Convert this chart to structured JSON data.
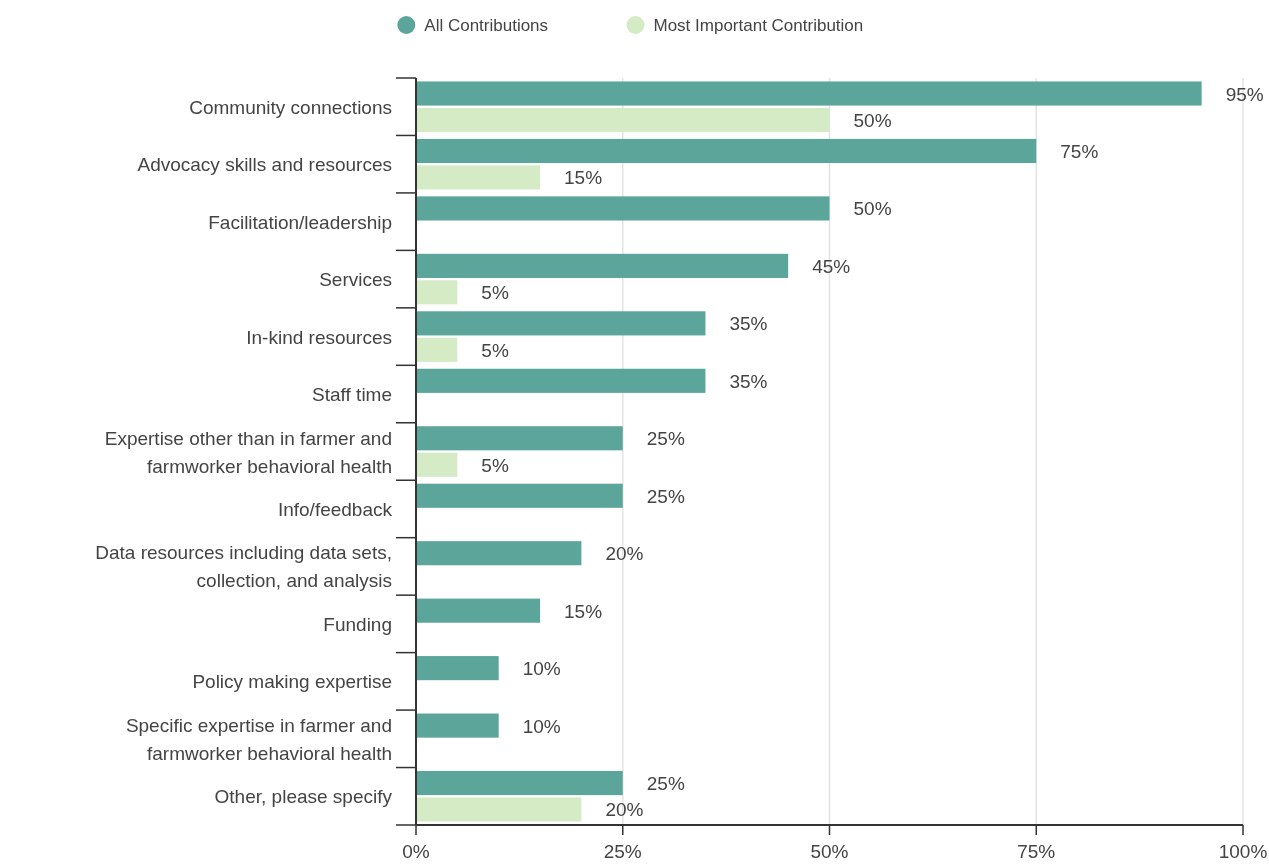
{
  "chart_data": {
    "type": "bar",
    "orientation": "horizontal",
    "categories": [
      "Community connections",
      "Advocacy skills and resources",
      "Facilitation/leadership",
      "Services",
      "In-kind resources",
      "Staff time",
      "Expertise other than in farmer and\nfarmworker behavioral health",
      "Info/feedback",
      "Data resources including data sets,\ncollection, and analysis",
      "Funding",
      "Policy making expertise",
      "Specific expertise in farmer and\nfarmworker behavioral health",
      "Other, please specify"
    ],
    "series": [
      {
        "name": "All Contributions",
        "color": "#5ba59b",
        "values": [
          95,
          75,
          50,
          45,
          35,
          35,
          25,
          25,
          20,
          15,
          10,
          10,
          25
        ],
        "value_labels": [
          "95%",
          "75%",
          "50%",
          "45%",
          "35%",
          "35%",
          "25%",
          "25%",
          "20%",
          "15%",
          "10%",
          "10%",
          "25%"
        ]
      },
      {
        "name": "Most Important Contribution",
        "color": "#d4ebc6",
        "values": [
          50,
          15,
          null,
          5,
          5,
          null,
          5,
          null,
          null,
          null,
          null,
          null,
          20
        ],
        "value_labels": [
          "50%",
          "15%",
          null,
          "5%",
          "5%",
          null,
          "5%",
          null,
          null,
          null,
          null,
          null,
          "20%"
        ]
      }
    ],
    "xlim": [
      0,
      100
    ],
    "xticks": [
      {
        "value": 0,
        "label": "0%"
      },
      {
        "value": 25,
        "label": "25%"
      },
      {
        "value": 50,
        "label": "50%"
      },
      {
        "value": 75,
        "label": "75%"
      },
      {
        "value": 100,
        "label": "100%"
      }
    ],
    "grid": "x",
    "legend": "top"
  }
}
